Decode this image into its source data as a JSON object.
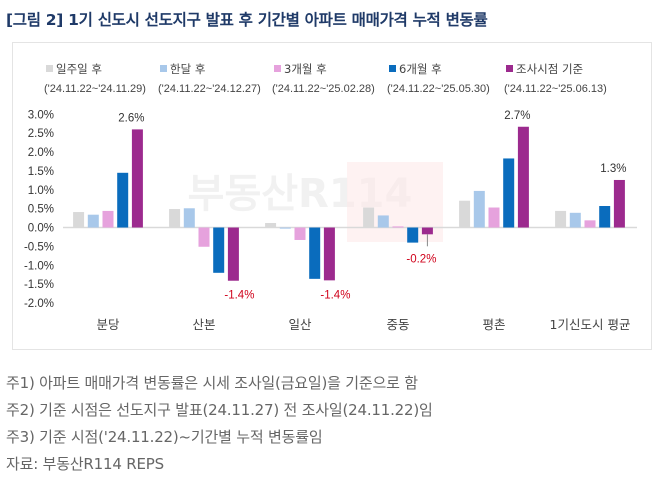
{
  "title": "[그림 2] 1기 신도시 선도지구 발표 후 기간별 아파트 매매가격 누적 변동률",
  "watermark": "부동산R114",
  "chart_data": {
    "type": "bar",
    "categories": [
      "분당",
      "산본",
      "일산",
      "중동",
      "평촌",
      "1기신도시 평균"
    ],
    "series": [
      {
        "name": "일주일 후",
        "period": "('24.11.22~'24.11.29)",
        "color": "#d9d9d9",
        "values": [
          0.41,
          0.49,
          0.12,
          0.53,
          0.71,
          0.44
        ]
      },
      {
        "name": "한달 후",
        "period": "('24.11.22~'24.12.27)",
        "color": "#a8c8ea",
        "values": [
          0.34,
          0.51,
          -0.03,
          0.32,
          0.97,
          0.39
        ]
      },
      {
        "name": "3개월 후",
        "period": "('24.11.22~'25.02.28)",
        "color": "#e6a2dd",
        "values": [
          0.44,
          -0.51,
          -0.33,
          0.03,
          0.53,
          0.19
        ]
      },
      {
        "name": "6개월 후",
        "period": "('24.11.22~'25.05.30)",
        "color": "#0a6cbd",
        "values": [
          1.45,
          -1.2,
          -1.36,
          -0.4,
          1.83,
          0.57
        ]
      },
      {
        "name": "조사시점 기준",
        "period": "('24.11.22~'25.06.13)",
        "color": "#9c2a8e",
        "values": [
          2.6,
          -1.41,
          -1.4,
          -0.18,
          2.67,
          1.26
        ]
      }
    ],
    "data_labels": [
      "2.6%",
      "-1.4%",
      "-1.4%",
      "-0.2%",
      "2.7%",
      "1.3%"
    ],
    "yticks": [
      "3.0%",
      "2.5%",
      "2.0%",
      "1.5%",
      "1.0%",
      "0.5%",
      "0.0%",
      "-0.5%",
      "-1.0%",
      "-1.5%",
      "-2.0%"
    ],
    "ylim": [
      -2.0,
      3.0
    ],
    "legend_position": "top",
    "grid": false,
    "negative_label_color": "#d0021b",
    "positive_label_color": "#333333"
  },
  "notes": [
    "주1) 아파트 매매가격 변동률은 시세 조사일(금요일)을 기준으로 함",
    "주2) 기준 시점은 선도지구 발표(24.11.27) 전 조사일(24.11.22)임",
    "주3) 기준 시점('24.11.22)~기간별 누적 변동률임",
    "자료: 부동산R114 REPS"
  ]
}
